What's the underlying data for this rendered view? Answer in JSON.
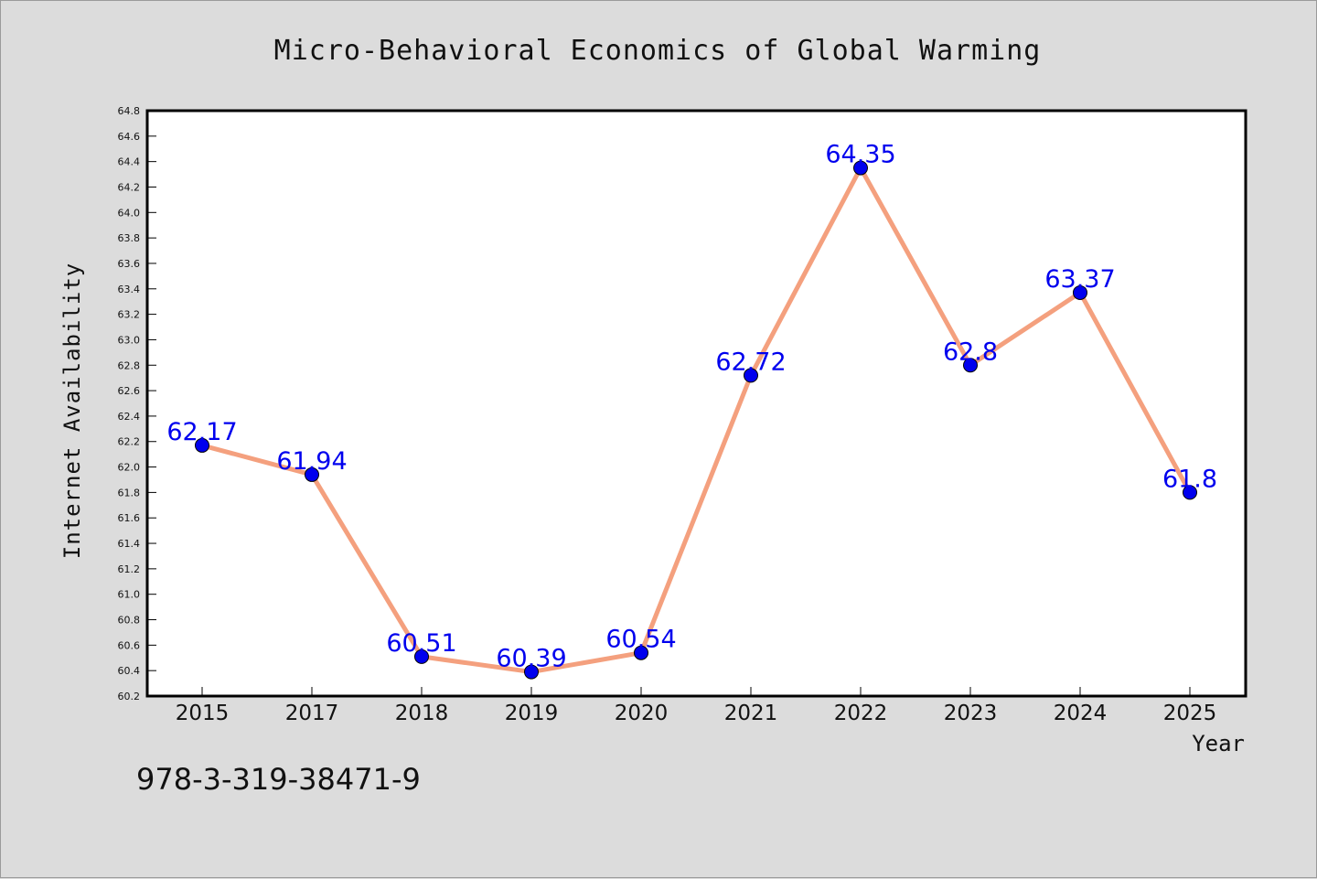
{
  "chart_data": {
    "type": "line",
    "title": "Micro-Behavioral Economics of Global Warming",
    "xlabel": "Year",
    "ylabel": "Internet Availability",
    "categories": [
      "2015",
      "2017",
      "2018",
      "2019",
      "2020",
      "2021",
      "2022",
      "2023",
      "2024",
      "2025"
    ],
    "values": [
      62.17,
      61.94,
      60.51,
      60.39,
      60.54,
      62.72,
      64.35,
      62.8,
      63.37,
      61.8
    ],
    "data_labels": [
      "62.17",
      "61.94",
      "60.51",
      "60.39",
      "60.54",
      "62.72",
      "64.35",
      "62.8",
      "63.37",
      "61.8"
    ],
    "ylim": [
      60.2,
      64.8
    ],
    "yticks": [
      "60.2",
      "60.4",
      "60.6",
      "60.8",
      "61.0",
      "61.2",
      "61.4",
      "61.6",
      "61.8",
      "62.0",
      "62.2",
      "62.4",
      "62.6",
      "62.8",
      "63.0",
      "63.2",
      "63.4",
      "63.6",
      "63.8",
      "64.0",
      "64.2",
      "64.4",
      "64.6",
      "64.8"
    ],
    "grid": false,
    "line_color": "#f4a07e",
    "marker_color": "#0000ee",
    "label_color": "#0000ee"
  },
  "footer": {
    "isbn": "978-3-319-38471-9"
  }
}
